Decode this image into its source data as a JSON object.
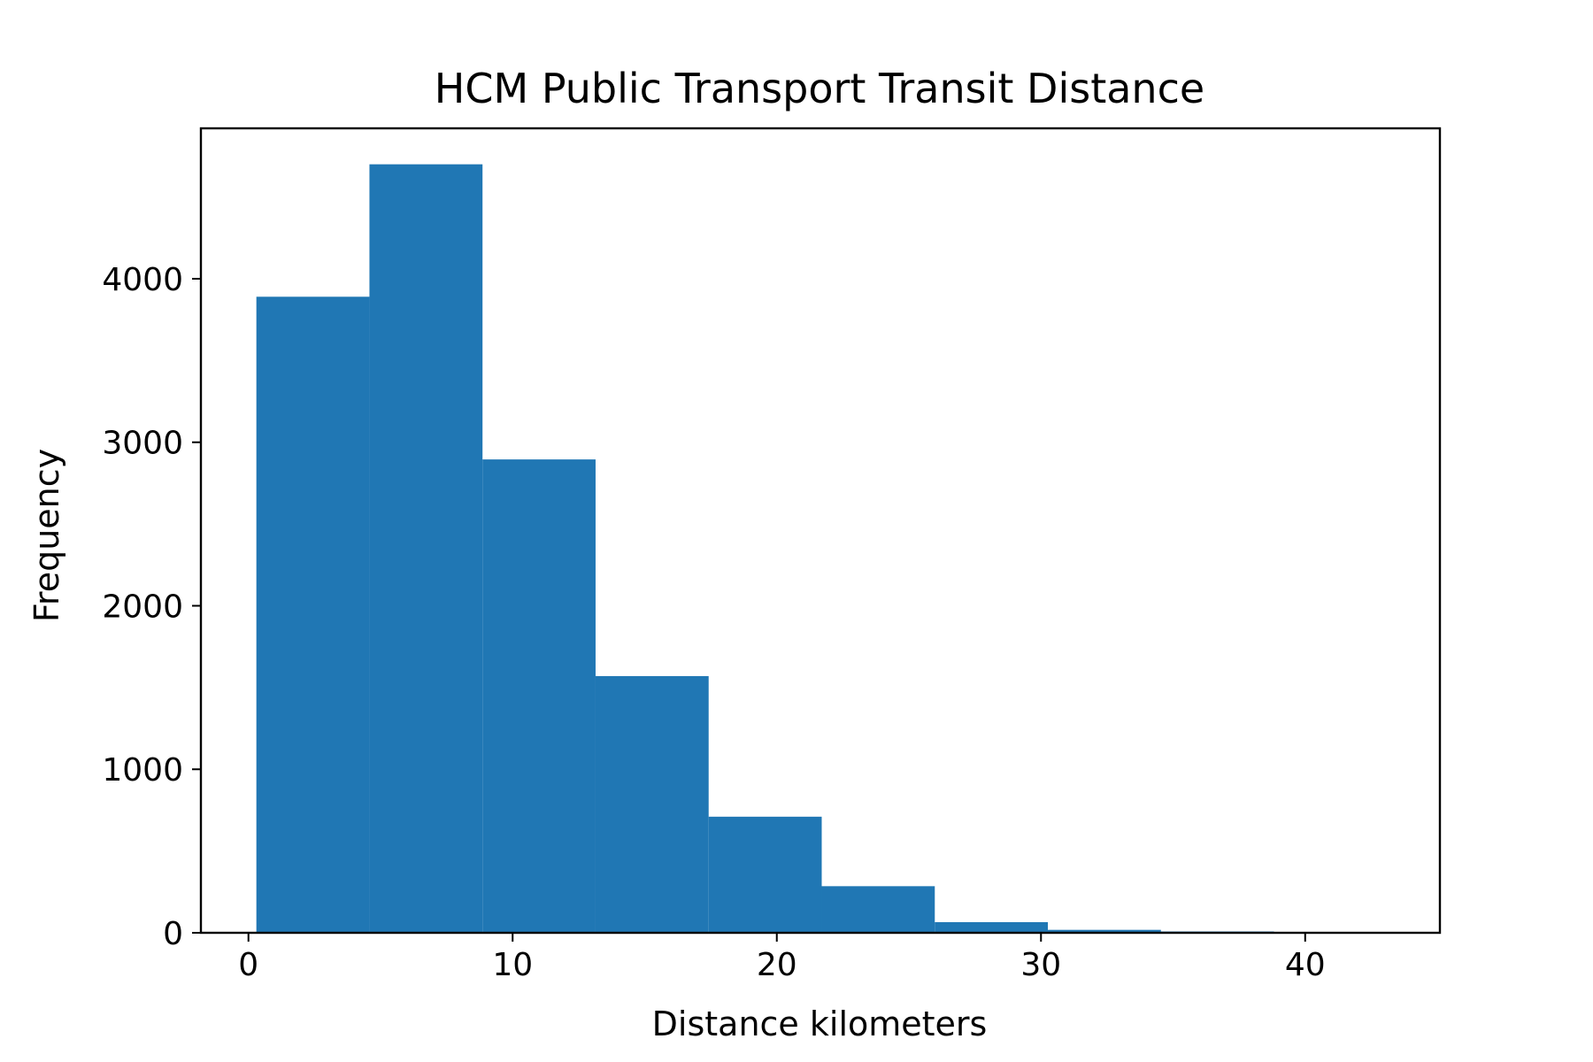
{
  "chart_data": {
    "type": "bar",
    "title": "HCM Public Transport Transit Distance",
    "xlabel": "Distance kilometers",
    "ylabel": "Frequency",
    "xlim": [
      -1.8,
      45.1
    ],
    "ylim": [
      0,
      4920
    ],
    "xticks": [
      0,
      10,
      20,
      30,
      40
    ],
    "yticks": [
      0,
      1000,
      2000,
      3000,
      4000
    ],
    "grid": false,
    "color": "#2077b4",
    "bins": [
      {
        "x0": 0.3,
        "x1": 4.58,
        "value": 3890
      },
      {
        "x0": 4.58,
        "x1": 8.86,
        "value": 4700
      },
      {
        "x0": 8.86,
        "x1": 13.14,
        "value": 2895
      },
      {
        "x0": 13.14,
        "x1": 17.42,
        "value": 1570
      },
      {
        "x0": 17.42,
        "x1": 21.7,
        "value": 710
      },
      {
        "x0": 21.7,
        "x1": 25.98,
        "value": 285
      },
      {
        "x0": 25.98,
        "x1": 30.26,
        "value": 65
      },
      {
        "x0": 30.26,
        "x1": 34.54,
        "value": 18
      },
      {
        "x0": 34.54,
        "x1": 38.82,
        "value": 8
      },
      {
        "x0": 38.82,
        "x1": 43.1,
        "value": 3
      }
    ]
  }
}
